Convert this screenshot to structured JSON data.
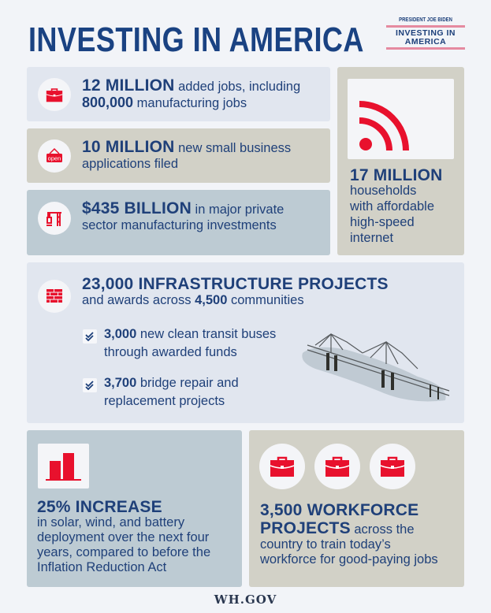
{
  "header": {
    "title": "INVESTING IN AMERICA",
    "logo_top": "PRESIDENT JOE BIDEN",
    "logo_line1": "INVESTING IN",
    "logo_line2": "AMERICA"
  },
  "colors": {
    "navy": "#1c3f7a",
    "red": "#e8112d",
    "panel_light": "#e1e6ef",
    "panel_tan": "#d2d1c7",
    "panel_steel": "#bdcbd3",
    "background": "#f2f4f8"
  },
  "stats": {
    "jobs": {
      "icon": "briefcase-icon",
      "big": "12 MILLION",
      "text1": " added jobs, including",
      "bold2": "800,000",
      "text2": " manufacturing jobs"
    },
    "business": {
      "icon": "open-sign-icon",
      "icon_label": "open",
      "big": "10 MILLION",
      "text1": " new small business",
      "text2": "applications filed"
    },
    "investment": {
      "icon": "crane-icon",
      "big": "$435 BILLION",
      "text1": " in major private",
      "text2": "sector manufacturing investments"
    },
    "internet": {
      "icon": "wifi-signal-icon",
      "big": "17 MILLION",
      "lines": [
        "households",
        "with affordable",
        "high-speed",
        "internet"
      ]
    },
    "infrastructure": {
      "icon": "brick-wall-icon",
      "big": "23,000 INFRASTRUCTURE PROJECTS",
      "sub_pre": "and awards across ",
      "sub_bold": "4,500",
      "sub_post": " communities",
      "items": [
        {
          "bold": "3,000",
          "text1": " new clean transit buses",
          "text2": "through awarded funds"
        },
        {
          "bold": "3,700",
          "text1": " bridge repair and",
          "text2": "replacement projects"
        }
      ],
      "image": "bridge-illustration"
    },
    "clean_energy": {
      "icon": "bar-chart-icon",
      "big": "25% INCREASE",
      "lines": [
        "in solar, wind, and battery",
        "deployment over the next four",
        "years, compared to before the",
        "Inflation Reduction Act"
      ]
    },
    "workforce": {
      "icon": "briefcase-icon",
      "big1": "3,500 WORKFORCE",
      "big2": "PROJECTS",
      "text1": " across the",
      "lines": [
        "country to train today’s",
        "workforce for good-paying jobs"
      ]
    }
  },
  "footer": "WH.GOV"
}
